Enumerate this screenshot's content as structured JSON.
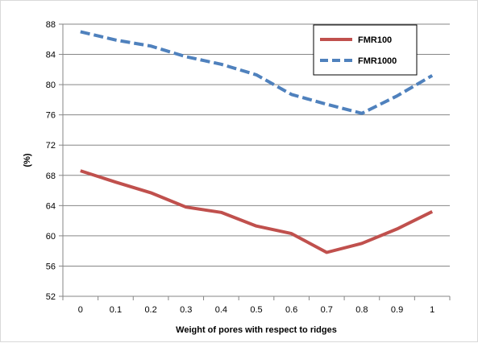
{
  "chart_data": {
    "type": "line",
    "title": "",
    "xlabel": "Weight of pores with respect to ridges",
    "ylabel": "(%)",
    "x": [
      0,
      0.1,
      0.2,
      0.3,
      0.4,
      0.5,
      0.6,
      0.7,
      0.8,
      0.9,
      1
    ],
    "x_tick_labels": [
      "0",
      "0.1",
      "0.2",
      "0.3",
      "0.4",
      "0.5",
      "0.6",
      "0.7",
      "0.8",
      "0.9",
      "1"
    ],
    "ylim": [
      52,
      88
    ],
    "y_ticks": [
      52,
      56,
      60,
      64,
      68,
      72,
      76,
      80,
      84,
      88
    ],
    "y_tick_labels": [
      "52",
      "56",
      "60",
      "64",
      "68",
      "72",
      "76",
      "80",
      "84",
      "88"
    ],
    "grid": "horizontal",
    "legend_position": "top-right",
    "series": [
      {
        "name": "FMR100",
        "color": "#c0504d",
        "style": "solid",
        "values": [
          68.6,
          67.1,
          65.7,
          63.8,
          63.1,
          61.3,
          60.3,
          57.8,
          59.0,
          60.9,
          63.2
        ]
      },
      {
        "name": "FMR1000",
        "color": "#4f81bd",
        "style": "dashed",
        "values": [
          87.0,
          85.9,
          85.1,
          83.7,
          82.7,
          81.3,
          78.7,
          77.4,
          76.2,
          78.5,
          81.2
        ]
      }
    ]
  }
}
